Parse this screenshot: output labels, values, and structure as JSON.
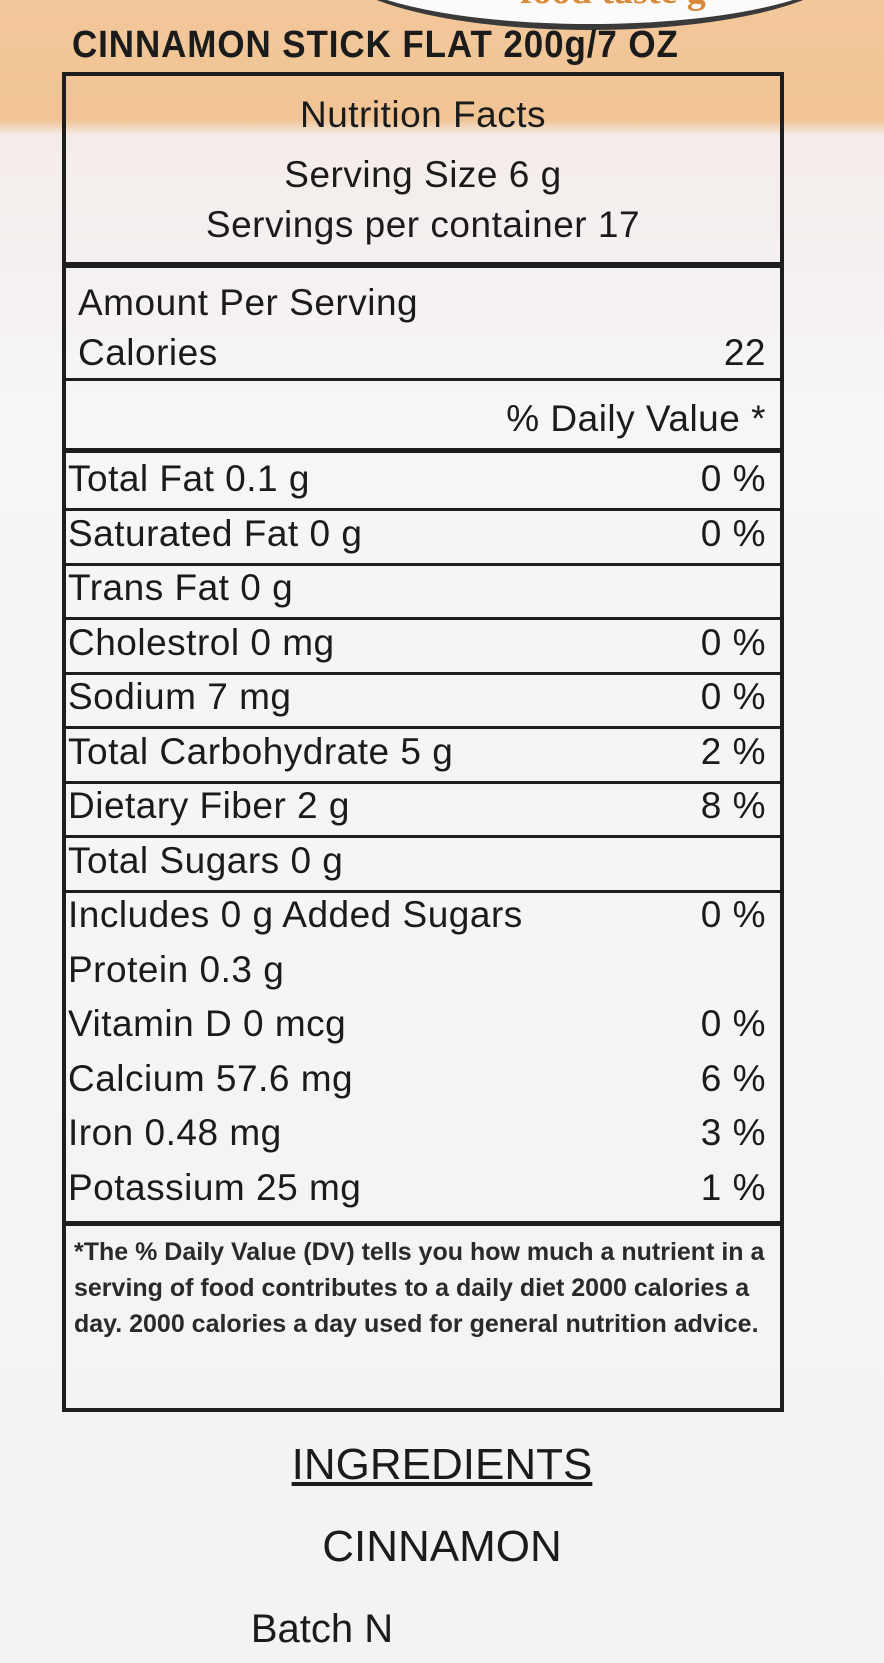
{
  "package": {
    "tagline": "food taste g",
    "product_line": "CINNAMON STICK FLAT 200g/7 OZ"
  },
  "label": {
    "title": "Nutrition Facts",
    "serving_size": "Serving Size 6 g",
    "servings_per_container": "Servings per container 17",
    "amount_per_serving": "Amount Per Serving",
    "calories_label": "Calories",
    "calories_value": "22",
    "dv_header": "% Daily Value *",
    "rows": [
      {
        "name": "Total Fat 0.1 g",
        "dv": "0 %"
      },
      {
        "name": "Saturated Fat 0 g",
        "dv": "0 %"
      },
      {
        "name": "Trans Fat 0 g",
        "dv": ""
      },
      {
        "name": "Cholestrol 0 mg",
        "dv": "0 %"
      },
      {
        "name": "Sodium 7 mg",
        "dv": "0 %"
      },
      {
        "name": "Total Carbohydrate 5 g",
        "dv": "2 %"
      },
      {
        "name": "Dietary Fiber 2 g",
        "dv": "8 %"
      },
      {
        "name": "Total Sugars 0 g",
        "dv": ""
      },
      {
        "name": "Includes 0 g Added Sugars",
        "dv": "0 %"
      },
      {
        "name": "Protein 0.3 g",
        "dv": ""
      },
      {
        "name": "Vitamin D 0 mcg",
        "dv": "0 %"
      },
      {
        "name": "Calcium 57.6 mg",
        "dv": "6 %"
      },
      {
        "name": "Iron 0.48 mg",
        "dv": "3 %"
      },
      {
        "name": "Potassium 25 mg",
        "dv": "1 %"
      }
    ],
    "footnote": "*The % Daily Value (DV) tells you how much a nutrient in a serving of food contributes to a daily diet 2000 calories a day. 2000 calories a day used for general nutrition advice."
  },
  "ingredients": {
    "heading": "INGREDIENTS",
    "list": "CINNAMON",
    "batch": "Batch N"
  }
}
